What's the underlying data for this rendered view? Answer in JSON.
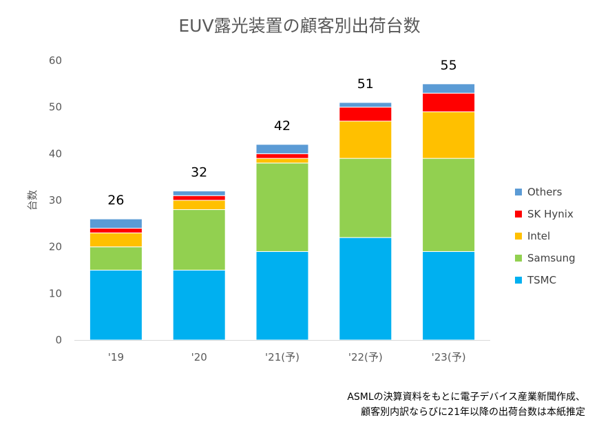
{
  "chart_data": {
    "type": "bar",
    "stacked": true,
    "title": "EUV露光装置の顧客別出荷台数",
    "ylabel": "台数",
    "xlabel": "",
    "ylim": [
      0,
      60
    ],
    "yticks": [
      "0",
      "10",
      "20",
      "30",
      "40",
      "50",
      "60"
    ],
    "grid": false,
    "legend_position": "right",
    "categories": [
      "'19",
      "'20",
      "'21(予)",
      "'22(予)",
      "'23(予)"
    ],
    "totals": [
      "26",
      "32",
      "42",
      "51",
      "55"
    ],
    "series": [
      {
        "name": "TSMC",
        "color": "#00B0F0",
        "values": [
          15,
          15,
          19,
          22,
          19
        ]
      },
      {
        "name": "Samsung",
        "color": "#92D050",
        "values": [
          5,
          13,
          19,
          17,
          20
        ]
      },
      {
        "name": "Intel",
        "color": "#FFC000",
        "values": [
          3,
          2,
          1,
          8,
          10
        ]
      },
      {
        "name": "SK Hynix",
        "color": "#FF0000",
        "values": [
          1,
          1,
          1,
          3,
          4
        ]
      },
      {
        "name": "Others",
        "color": "#5B9BD5",
        "values": [
          2,
          1,
          2,
          1,
          2
        ]
      }
    ]
  },
  "note": {
    "line1": "ASMLの決算資料をもとに電子デバイス産業新聞作成、",
    "line2": "顧客別内訳ならびに21年以降の出荷台数は本紙推定"
  }
}
